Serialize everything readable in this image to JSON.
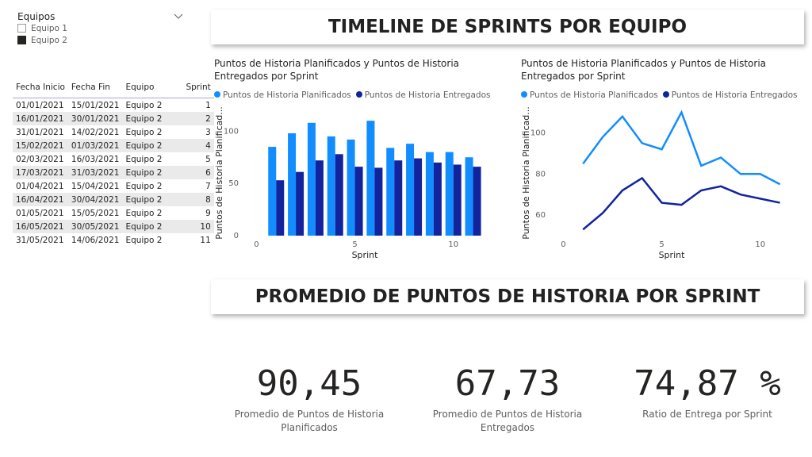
{
  "slicer": {
    "title": "Equipos",
    "items": [
      {
        "label": "Equipo 1",
        "checked": false
      },
      {
        "label": "Equipo 2",
        "checked": true
      }
    ]
  },
  "table": {
    "columns": [
      "Fecha Inicio",
      "Fecha Fin",
      "Equipo",
      "Sprint"
    ],
    "rows": [
      [
        "01/01/2021",
        "15/01/2021",
        "Equipo 2",
        "1"
      ],
      [
        "16/01/2021",
        "30/01/2021",
        "Equipo 2",
        "2"
      ],
      [
        "31/01/2021",
        "14/02/2021",
        "Equipo 2",
        "3"
      ],
      [
        "15/02/2021",
        "01/03/2021",
        "Equipo 2",
        "4"
      ],
      [
        "02/03/2021",
        "16/03/2021",
        "Equipo 2",
        "5"
      ],
      [
        "17/03/2021",
        "31/03/2021",
        "Equipo 2",
        "6"
      ],
      [
        "01/04/2021",
        "15/04/2021",
        "Equipo 2",
        "7"
      ],
      [
        "16/04/2021",
        "30/04/2021",
        "Equipo 2",
        "8"
      ],
      [
        "01/05/2021",
        "15/05/2021",
        "Equipo 2",
        "9"
      ],
      [
        "16/05/2021",
        "30/05/2021",
        "Equipo 2",
        "10"
      ],
      [
        "31/05/2021",
        "14/06/2021",
        "Equipo 2",
        "11"
      ]
    ]
  },
  "header_timeline": "TIMELINE DE SPRINTS POR EQUIPO",
  "header_average": "PROMEDIO DE PUNTOS DE HISTORIA POR SPRINT",
  "chart_data": [
    {
      "type": "bar",
      "title": "Puntos de Historia Planificados y Puntos de Historia Entregados por Sprint",
      "xlabel": "Sprint",
      "ylabel": "Puntos de Historia Planificad...",
      "x": [
        1,
        2,
        3,
        4,
        5,
        6,
        7,
        8,
        9,
        10,
        11
      ],
      "series": [
        {
          "name": "Puntos de Historia Planificados",
          "color": "#118dff",
          "values": [
            85,
            98,
            108,
            95,
            92,
            110,
            84,
            88,
            80,
            80,
            75
          ]
        },
        {
          "name": "Puntos de Historia Entregados",
          "color": "#12239e",
          "values": [
            53,
            61,
            72,
            78,
            66,
            65,
            72,
            74,
            70,
            68,
            66
          ]
        }
      ],
      "xlim": [
        -0.5,
        11.5
      ],
      "xticks": [
        0,
        5,
        10
      ],
      "ylim": [
        0,
        120
      ],
      "yticks": [
        0,
        50,
        100
      ],
      "grid": false
    },
    {
      "type": "line",
      "title": "Puntos de Historia Planificados y Puntos de Historia Entregados por Sprint",
      "xlabel": "Sprint",
      "ylabel": "Puntos de Historia Planificad...",
      "x": [
        1,
        2,
        3,
        4,
        5,
        6,
        7,
        8,
        9,
        10,
        11
      ],
      "series": [
        {
          "name": "Puntos de Historia Planificados",
          "color": "#118dff",
          "values": [
            85,
            98,
            108,
            95,
            92,
            110,
            84,
            88,
            80,
            80,
            75
          ]
        },
        {
          "name": "Puntos de Historia Entregados",
          "color": "#12239e",
          "values": [
            53,
            61,
            72,
            78,
            66,
            65,
            72,
            74,
            70,
            68,
            66
          ]
        }
      ],
      "xlim": [
        -0.5,
        11.5
      ],
      "xticks": [
        0,
        5,
        10
      ],
      "ylim": [
        50,
        111
      ],
      "yticks": [
        60,
        80,
        100
      ],
      "grid": false
    }
  ],
  "kpis": [
    {
      "value": "90,45",
      "label": "Promedio de Puntos de Historia Planificados"
    },
    {
      "value": "67,73",
      "label": "Promedio de Puntos de Historia Entregados"
    },
    {
      "value": "74,87 %",
      "label": "Ratio de Entrega por Sprint"
    }
  ]
}
